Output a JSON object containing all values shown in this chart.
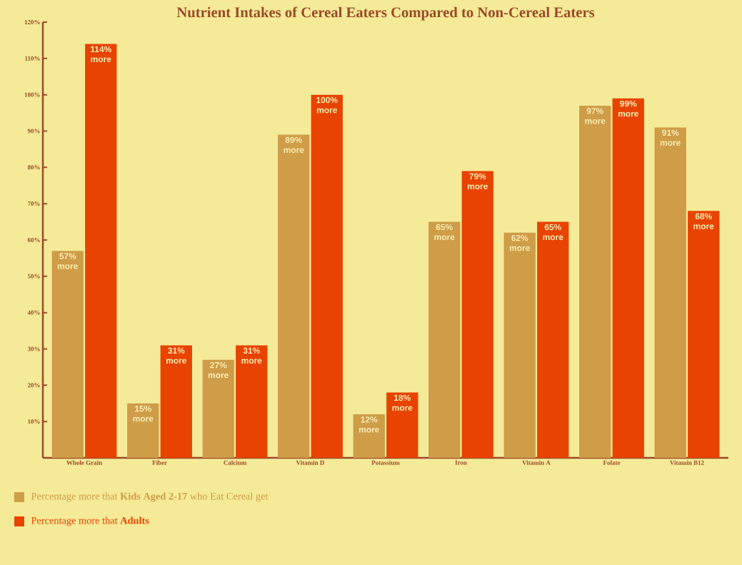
{
  "chart_data": {
    "type": "bar",
    "title": "Nutrient Intakes of Cereal Eaters Compared to Non-Cereal Eaters",
    "categories": [
      "Whole Grain",
      "Fiber",
      "Calcium",
      "Vitamin D",
      "Potassium",
      "Iron",
      "Vitamin A",
      "Folate",
      "Vitamin B12"
    ],
    "series": [
      {
        "name": "Percentage more that **Kids Aged 2-17** who Eat Cereal get",
        "color": "#cf9c48",
        "values": [
          57,
          15,
          27,
          89,
          12,
          65,
          62,
          97,
          91
        ],
        "value_labels": [
          "57% more",
          "15% more",
          "27% more",
          "89% more",
          "12% more",
          "65% more",
          "62% more",
          "97% more",
          "91% more"
        ]
      },
      {
        "name": "Percentage more that **Adults**",
        "color": "#e84300",
        "values": [
          114,
          31,
          31,
          100,
          18,
          79,
          65,
          99,
          68
        ],
        "value_labels": [
          "114% more",
          "31% more",
          "31% more",
          "100% more",
          "18% more",
          "79% more",
          "65% more",
          "99% more",
          "68% more"
        ]
      }
    ],
    "ylim": [
      0,
      120
    ],
    "yticks": [
      {
        "value": 10,
        "label": "10%"
      },
      {
        "value": 20,
        "label": "20%"
      },
      {
        "value": 30,
        "label": "30%"
      },
      {
        "value": 40,
        "label": "40%"
      },
      {
        "value": 50,
        "label": "50%"
      },
      {
        "value": 60,
        "label": "60%"
      },
      {
        "value": 70,
        "label": "70%"
      },
      {
        "value": 80,
        "label": "80%"
      },
      {
        "value": 90,
        "label": "90%"
      },
      {
        "value": 100,
        "label": "100%"
      },
      {
        "value": 110,
        "label": "110%"
      },
      {
        "value": 120,
        "label": "120%"
      }
    ],
    "grid": false,
    "legend": "bottom left"
  }
}
